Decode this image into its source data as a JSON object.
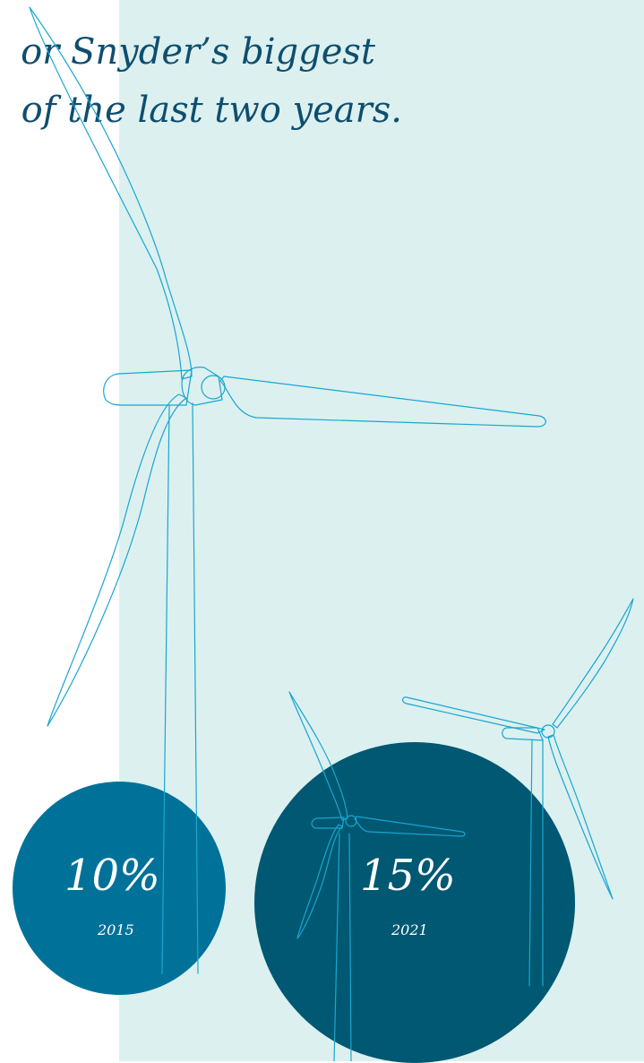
{
  "headline": {
    "line1": "or Snyder’s biggest",
    "line2": "of the last two years."
  },
  "stats": [
    {
      "percent": "10%",
      "year": "2015"
    },
    {
      "percent": "15%",
      "year": "2021"
    }
  ],
  "colors": {
    "panel": "#dcf0f0",
    "headline": "#0e4e6e",
    "circle_2015": "#00729a",
    "circle_2021": "#005872",
    "stat_text": "#ffffff",
    "turbine_line": "#1aa6cf"
  },
  "icons": [
    "wind-turbine-illustration"
  ]
}
